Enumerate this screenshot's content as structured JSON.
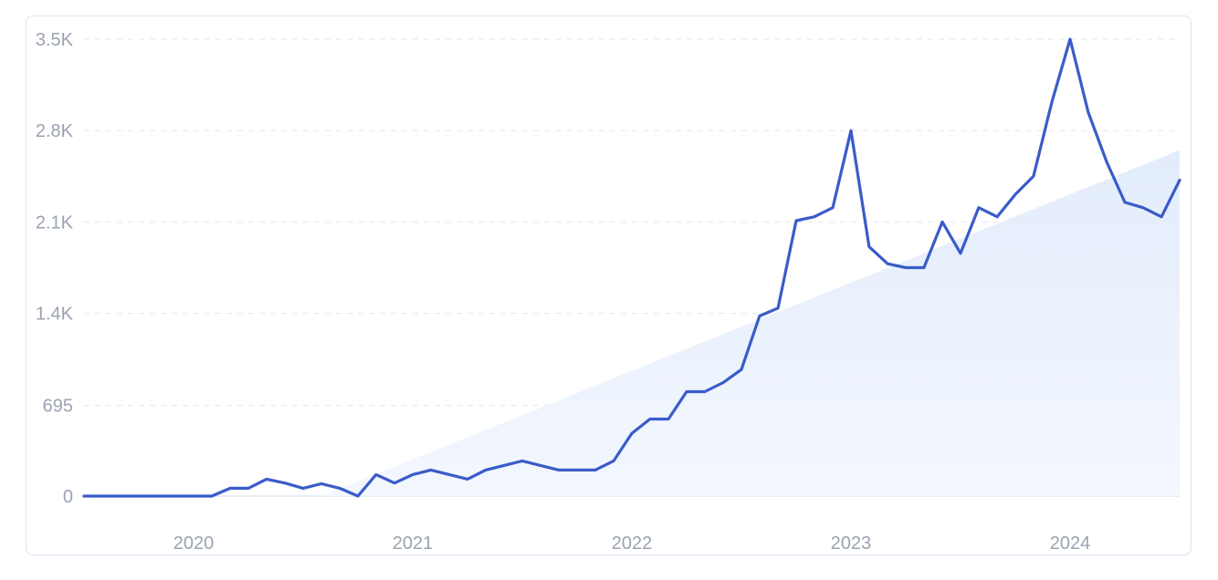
{
  "chart_data": {
    "type": "line",
    "title": "",
    "xlabel": "",
    "ylabel": "",
    "ylim": [
      0,
      3500
    ],
    "y_ticks": [
      {
        "value": 0,
        "label": "0"
      },
      {
        "value": 695,
        "label": "695"
      },
      {
        "value": 1400,
        "label": "1.4K"
      },
      {
        "value": 2100,
        "label": "2.1K"
      },
      {
        "value": 2800,
        "label": "2.8K"
      },
      {
        "value": 3500,
        "label": "3.5K"
      }
    ],
    "x_ticks": [
      {
        "value": 2020.0,
        "label": "2020"
      },
      {
        "value": 2021.0,
        "label": "2021"
      },
      {
        "value": 2022.0,
        "label": "2022"
      },
      {
        "value": 2023.0,
        "label": "2023"
      },
      {
        "value": 2024.0,
        "label": "2024"
      }
    ],
    "xlim": [
      2019.5,
      2024.5
    ],
    "grid": true,
    "series": [
      {
        "color": "#3a5cc9",
        "x": [
          2019.5,
          2019.583,
          2019.667,
          2019.75,
          2019.833,
          2019.917,
          2020.0,
          2020.083,
          2020.167,
          2020.25,
          2020.333,
          2020.417,
          2020.5,
          2020.583,
          2020.667,
          2020.75,
          2020.833,
          2020.917,
          2021.0,
          2021.083,
          2021.167,
          2021.25,
          2021.333,
          2021.417,
          2021.5,
          2021.583,
          2021.667,
          2021.75,
          2021.833,
          2021.917,
          2022.0,
          2022.083,
          2022.167,
          2022.25,
          2022.333,
          2022.417,
          2022.5,
          2022.583,
          2022.667,
          2022.75,
          2022.833,
          2022.917,
          2023.0,
          2023.083,
          2023.167,
          2023.25,
          2023.333,
          2023.417,
          2023.5,
          2023.583,
          2023.667,
          2023.75,
          2023.833,
          2023.917,
          2024.0,
          2024.083,
          2024.167,
          2024.25,
          2024.333,
          2024.417,
          2024.5
        ],
        "values": [
          0,
          0,
          0,
          0,
          0,
          0,
          0,
          0,
          60,
          60,
          130,
          100,
          60,
          95,
          60,
          0,
          165,
          100,
          165,
          200,
          165,
          130,
          200,
          235,
          270,
          235,
          200,
          200,
          200,
          270,
          480,
          590,
          590,
          800,
          800,
          870,
          970,
          1380,
          1440,
          2110,
          2140,
          2210,
          2800,
          1910,
          1780,
          1750,
          1750,
          2100,
          1860,
          2210,
          2140,
          2310,
          2450,
          3020,
          3500,
          2940,
          2560,
          2250,
          2210,
          2140,
          2420
        ]
      }
    ],
    "trend": {
      "color": "#e8f0fc",
      "start": [
        2020.583,
        0
      ],
      "end": [
        2024.5,
        2650
      ]
    }
  }
}
